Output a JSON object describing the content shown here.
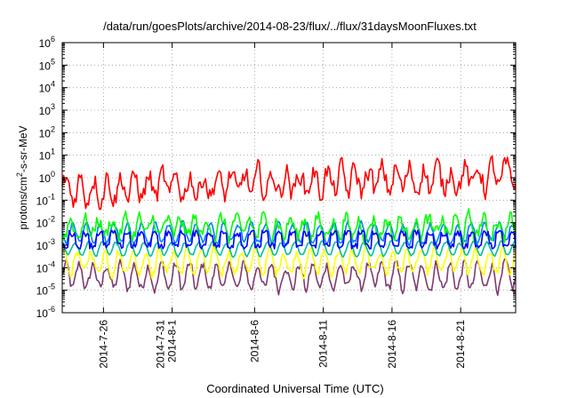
{
  "chart_data": {
    "type": "line",
    "title": "/data/run/goesPlots/archive/2014-08-23/flux/../flux/31daysMoonFluxes.txt",
    "xlabel": "Coordinated Universal Time (UTC)",
    "ylabel_parts": [
      "protons/cm",
      "2",
      "-s-sr-MeV"
    ],
    "yscale": "log",
    "grid": true,
    "xlim": [
      "2014-07-23",
      "2014-08-25"
    ],
    "ylim_exponents": [
      -6,
      6
    ],
    "y_ticks": [
      {
        "base": "10",
        "exp": "-6",
        "e": -6
      },
      {
        "base": "10",
        "exp": "-5",
        "e": -5
      },
      {
        "base": "10",
        "exp": "-4",
        "e": -4
      },
      {
        "base": "10",
        "exp": "-3",
        "e": -3
      },
      {
        "base": "10",
        "exp": "-2",
        "e": -2
      },
      {
        "base": "10",
        "exp": "-1",
        "e": -1
      },
      {
        "base": "10",
        "exp": "0",
        "e": 0
      },
      {
        "base": "10",
        "exp": "1",
        "e": 1
      },
      {
        "base": "10",
        "exp": "2",
        "e": 2
      },
      {
        "base": "10",
        "exp": "3",
        "e": 3
      },
      {
        "base": "10",
        "exp": "4",
        "e": 4
      },
      {
        "base": "10",
        "exp": "5",
        "e": 5
      },
      {
        "base": "10",
        "exp": "6",
        "e": 6
      }
    ],
    "x_ticks": [
      {
        "lines": [
          "2014-7-26"
        ],
        "day": 3
      },
      {
        "lines": [
          "2014-7-31",
          "2014-8-1"
        ],
        "day": 8
      },
      {
        "lines": [
          "2014-8-6"
        ],
        "day": 14
      },
      {
        "lines": [
          "2014-8-11"
        ],
        "day": 19
      },
      {
        "lines": [
          "2014-8-16"
        ],
        "day": 24
      },
      {
        "lines": [
          "2014-8-21"
        ],
        "day": 29
      }
    ],
    "series": [
      {
        "color": "#7f3b6f",
        "level": 4e-05,
        "jitter": 0.25,
        "smooth": 0.55
      },
      {
        "color": "#ffff00",
        "level": 0.00018,
        "jitter": 0.22,
        "smooth": 0.5
      },
      {
        "color": "#00c0a0",
        "level": 0.0007,
        "jitter": 0.06,
        "smooth": 0.3
      },
      {
        "color": "#0080ff",
        "level": 0.0035,
        "jitter": 0.12,
        "smooth": 0.4
      },
      {
        "color": "#00ff00",
        "level": 0.006,
        "jitter": 0.35,
        "smooth": 0.4
      },
      {
        "color": "#0000ff",
        "level": 0.0015,
        "jitter": 0.28,
        "smooth": 0.35
      },
      {
        "color": "#ff0000",
        "level": 0.3,
        "jitter": 0.45,
        "smooth": 0.5
      }
    ]
  }
}
